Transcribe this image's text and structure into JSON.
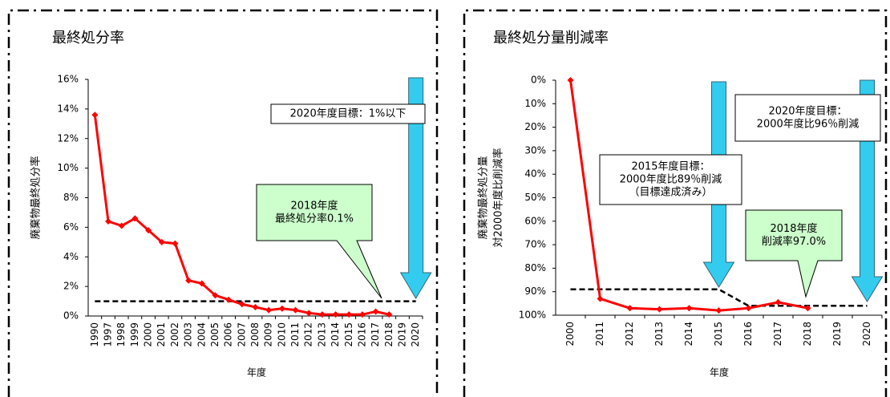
{
  "chart_data": [
    {
      "type": "line",
      "title": "最終処分率",
      "x_label": "年度",
      "y_label": [
        "廃棄物最終処分率"
      ],
      "categories": [
        "1990",
        "1997",
        "1998",
        "1999",
        "2000",
        "2001",
        "2002",
        "2003",
        "2004",
        "2005",
        "2006",
        "2007",
        "2008",
        "2009",
        "2010",
        "2011",
        "2012",
        "2013",
        "2014",
        "2015",
        "2016",
        "2017",
        "2018",
        "2019",
        "2020"
      ],
      "series": [
        {
          "color": "#ff0000",
          "values": [
            13.6,
            6.4,
            6.1,
            6.6,
            5.8,
            5.0,
            4.9,
            2.4,
            2.2,
            1.4,
            1.1,
            0.8,
            0.6,
            0.4,
            0.5,
            0.4,
            0.2,
            0.1,
            0.1,
            0.1,
            0.1,
            0.3,
            0.1,
            null,
            null
          ]
        },
        {
          "color": "#000000",
          "dashed": true,
          "values": [
            1,
            1,
            1,
            1,
            1,
            1,
            1,
            1,
            1,
            1,
            1,
            1,
            1,
            1,
            1,
            1,
            1,
            1,
            1,
            1,
            1,
            1,
            1,
            1,
            1
          ]
        }
      ],
      "ylim": [
        0,
        16
      ],
      "y_inverted": false,
      "yticks": [
        {
          "value": 0,
          "label": "0%"
        },
        {
          "value": 2,
          "label": "2%"
        },
        {
          "value": 4,
          "label": "4%"
        },
        {
          "value": 6,
          "label": "6%"
        },
        {
          "value": 8,
          "label": "8%"
        },
        {
          "value": 10,
          "label": "10%"
        },
        {
          "value": 12,
          "label": "12%"
        },
        {
          "value": 14,
          "label": "14%"
        },
        {
          "value": 16,
          "label": "16%"
        }
      ],
      "grid": false,
      "annotations": [
        {
          "lines": [
            "2020年度目標：1%以下"
          ],
          "fill": "#ffffff"
        },
        {
          "lines": [
            "2018年度",
            "最終処分率0.1%"
          ],
          "fill": "#ccffcc"
        }
      ]
    },
    {
      "type": "line",
      "title": "最終処分量削減率",
      "x_label": "年度",
      "y_label": [
        "廃棄物最終処分量",
        "対2000年度比削減率"
      ],
      "categories": [
        "2000",
        "2011",
        "2012",
        "2013",
        "2014",
        "2015",
        "2016",
        "2017",
        "2018",
        "2019",
        "2020"
      ],
      "series": [
        {
          "color": "#ff0000",
          "values": [
            0,
            93,
            97,
            97.5,
            97,
            98,
            97,
            94.5,
            97,
            null,
            null
          ]
        },
        {
          "color": "#000000",
          "dashed": true,
          "values": [
            89,
            89,
            89,
            89,
            89,
            89,
            96,
            96,
            96,
            96,
            96
          ]
        }
      ],
      "ylim": [
        0,
        100
      ],
      "y_inverted": true,
      "yticks": [
        {
          "value": 0,
          "label": "0%"
        },
        {
          "value": 10,
          "label": "10%"
        },
        {
          "value": 20,
          "label": "20%"
        },
        {
          "value": 30,
          "label": "30%"
        },
        {
          "value": 40,
          "label": "40%"
        },
        {
          "value": 50,
          "label": "50%"
        },
        {
          "value": 60,
          "label": "60%"
        },
        {
          "value": 70,
          "label": "70%"
        },
        {
          "value": 80,
          "label": "80%"
        },
        {
          "value": 90,
          "label": "90%"
        },
        {
          "value": 100,
          "label": "100%"
        }
      ],
      "grid": false,
      "annotations": [
        {
          "lines": [
            "2020年度目標：",
            "2000年度比96％削減"
          ],
          "fill": "#ffffff"
        },
        {
          "lines": [
            "2015年度目標：",
            "2000年度比89％削減",
            "（目標達成済み）"
          ],
          "fill": "#ffffff"
        },
        {
          "lines": [
            "2018年度",
            "削減率97.0%"
          ],
          "fill": "#ccffcc"
        }
      ]
    }
  ]
}
